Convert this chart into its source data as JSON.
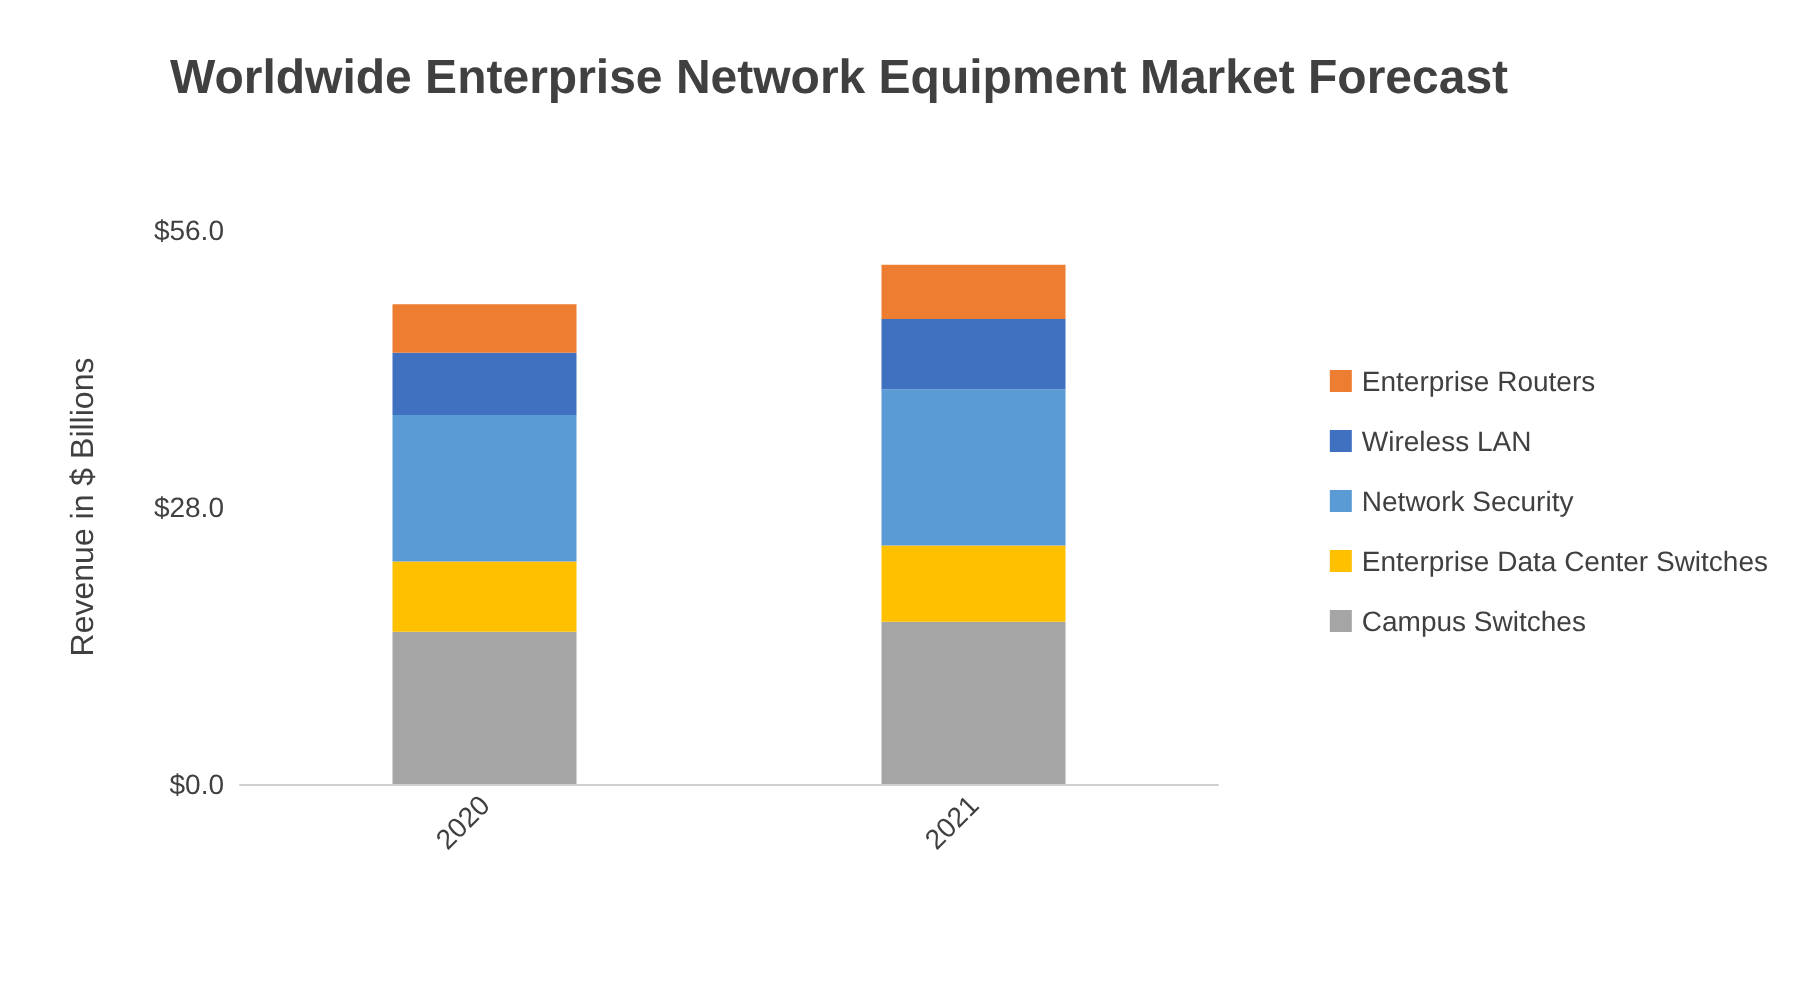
{
  "chart_data": {
    "type": "bar",
    "title": "Worldwide Enterprise Network Equipment Market Forecast",
    "ylabel": "Revenue in $ Billions",
    "categories": [
      "2020",
      "2021"
    ],
    "stacked": true,
    "series": [
      {
        "name": "Campus Switches",
        "color": "#a5a5a5",
        "values": [
          15.4,
          16.4
        ]
      },
      {
        "name": "Enterprise Data Center Switches",
        "color": "#ffc000",
        "values": [
          7.1,
          7.7
        ]
      },
      {
        "name": "Network Security",
        "color": "#5b9bd5",
        "values": [
          14.8,
          15.8
        ]
      },
      {
        "name": "Wireless LAN",
        "color": "#4070c0",
        "values": [
          6.3,
          7.1
        ]
      },
      {
        "name": "Enterprise Routers",
        "color": "#ed7d31",
        "values": [
          4.9,
          5.5
        ]
      }
    ],
    "ylim": [
      0,
      56
    ],
    "yticks": [
      {
        "value": 0,
        "label": "$0.0"
      },
      {
        "value": 28,
        "label": "$28.0"
      },
      {
        "value": 56,
        "label": "$56.0"
      }
    ],
    "grid": false,
    "legend": "right"
  }
}
